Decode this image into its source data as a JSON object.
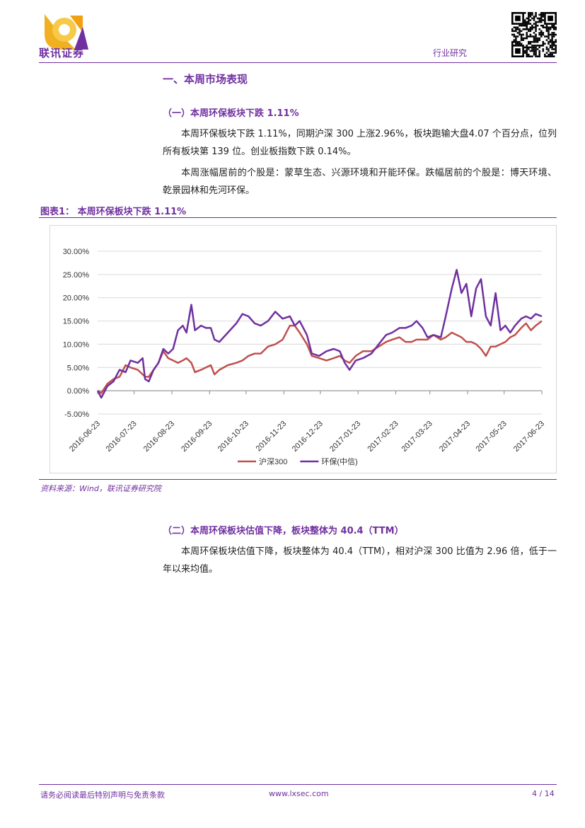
{
  "header": {
    "logo_text": "联讯证券",
    "section": "行业研究"
  },
  "section1": {
    "title": "一、本周市场表现",
    "sub1": {
      "title": "（一）本周环保板块下跌 1.11%",
      "paragraphs": [
        "本周环保板块下跌 1.11%，同期沪深 300 上涨2.96%，板块跑输大盘4.07 个百分点，位列所有板块第 139 位。创业板指数下跌 0.14%。",
        "本周涨幅居前的个股是：蒙草生态、兴源环境和开能环保。跌幅居前的个股是：博天环境、乾景园林和先河环保。"
      ]
    },
    "figure": {
      "title": "图表1： 本周环保板块下跌 1.11%",
      "source": "资料来源：Wind，联讯证券研究院"
    },
    "sub2": {
      "title": "（二）本周环保板块估值下降，板块整体为 40.4（TTM）",
      "paragraphs": [
        "本周环保板块估值下降，板块整体为 40.4（TTM），相对沪深 300 比值为 2.96 倍，低于一年以来均值。"
      ]
    }
  },
  "footer": {
    "disclaimer": "请务必阅读最后特别声明与免责条款",
    "url": "www.lxsec.com",
    "page": "4 / 14"
  },
  "chart_data": {
    "type": "line",
    "x": [
      "2016-06-23",
      "2016-06-26",
      "2016-07-01",
      "2016-07-06",
      "2016-07-11",
      "2016-07-16",
      "2016-07-20",
      "2016-07-26",
      "2016-07-30",
      "2016-08-01",
      "2016-08-04",
      "2016-08-08",
      "2016-08-12",
      "2016-08-16",
      "2016-08-20",
      "2016-08-24",
      "2016-08-28",
      "2016-09-01",
      "2016-09-04",
      "2016-09-08",
      "2016-09-11",
      "2016-09-16",
      "2016-09-20",
      "2016-09-24",
      "2016-09-27",
      "2016-10-01",
      "2016-10-08",
      "2016-10-15",
      "2016-10-20",
      "2016-10-25",
      "2016-10-30",
      "2016-11-04",
      "2016-11-10",
      "2016-11-16",
      "2016-11-22",
      "2016-11-28",
      "2016-12-02",
      "2016-12-06",
      "2016-12-12",
      "2016-12-16",
      "2016-12-22",
      "2016-12-28",
      "2017-01-03",
      "2017-01-08",
      "2017-01-12",
      "2017-01-16",
      "2017-01-21",
      "2017-01-27",
      "2017-02-03",
      "2017-02-09",
      "2017-02-15",
      "2017-02-20",
      "2017-02-26",
      "2017-03-03",
      "2017-03-08",
      "2017-03-12",
      "2017-03-17",
      "2017-03-21",
      "2017-03-26",
      "2017-04-01",
      "2017-04-05",
      "2017-04-10",
      "2017-04-14",
      "2017-04-18",
      "2017-04-22",
      "2017-04-26",
      "2017-04-30",
      "2017-05-04",
      "2017-05-08",
      "2017-05-12",
      "2017-05-16",
      "2017-05-20",
      "2017-05-24",
      "2017-05-28",
      "2017-06-01",
      "2017-06-06",
      "2017-06-10",
      "2017-06-14",
      "2017-06-18",
      "2017-06-23"
    ],
    "series": [
      {
        "name": "沪深300",
        "color": "#c0504d",
        "values": [
          0,
          -0.5,
          1.5,
          2.5,
          3,
          5.5,
          5,
          4.5,
          3.5,
          3,
          3,
          4.5,
          6,
          8.5,
          7,
          6.5,
          6,
          6.5,
          7,
          6,
          4,
          4.5,
          5,
          5.5,
          3.5,
          4.5,
          5.5,
          6,
          6.5,
          7.5,
          8,
          8,
          9.5,
          10,
          11,
          14,
          14,
          12.5,
          10,
          7.5,
          7,
          6.5,
          7,
          7.5,
          6.5,
          6,
          7.5,
          8.5,
          8.5,
          9.5,
          10.5,
          11,
          11.5,
          10.5,
          10.5,
          11,
          11,
          11,
          12,
          11,
          11.5,
          12.5,
          12,
          11.5,
          10.5,
          10.5,
          10,
          9,
          7.5,
          9.5,
          9.5,
          10,
          10.5,
          11.5,
          12,
          13.5,
          14.5,
          13,
          14,
          15
        ]
      },
      {
        "name": "环保(中信)",
        "color": "#7030a0",
        "values": [
          0,
          -1.5,
          1,
          2,
          4.5,
          4,
          6.5,
          6,
          7,
          2.5,
          2,
          4.5,
          6,
          9,
          8,
          9,
          13,
          14,
          12.5,
          18.5,
          13,
          14,
          13.5,
          13.5,
          11,
          10.5,
          12.5,
          14.5,
          16.5,
          16,
          14.5,
          14,
          15,
          17,
          15.5,
          16,
          14,
          15,
          12,
          8,
          7.5,
          8.5,
          9,
          8.5,
          6,
          4.5,
          6.5,
          7,
          8,
          10,
          12,
          12.5,
          13.5,
          13.5,
          14,
          15,
          13.5,
          11.5,
          12,
          11.5,
          16,
          22,
          26,
          21,
          23,
          16,
          22,
          24,
          16,
          14,
          21,
          13,
          14,
          12.5,
          14,
          15.5,
          16,
          15.5,
          16.5,
          16
        ]
      }
    ],
    "xlim": [
      "2016-06-23",
      "2017-06-23"
    ],
    "xticks": [
      "2016-06-23",
      "2016-07-23",
      "2016-08-23",
      "2016-09-23",
      "2016-10-23",
      "2016-11-23",
      "2016-12-23",
      "2017-01-23",
      "2017-02-23",
      "2017-03-23",
      "2017-04-23",
      "2017-05-23",
      "2017-06-23"
    ],
    "ylim": [
      -5,
      30
    ],
    "yticks": [
      {
        "value": -5,
        "label": "-5.00%"
      },
      {
        "value": 0,
        "label": "0.00%"
      },
      {
        "value": 5,
        "label": "5.00%"
      },
      {
        "value": 10,
        "label": "10.00%"
      },
      {
        "value": 15,
        "label": "15.00%"
      },
      {
        "value": 20,
        "label": "20.00%"
      },
      {
        "value": 25,
        "label": "25.00%"
      },
      {
        "value": 30,
        "label": "30.00%"
      }
    ],
    "grid": true,
    "legend": "bottom"
  }
}
